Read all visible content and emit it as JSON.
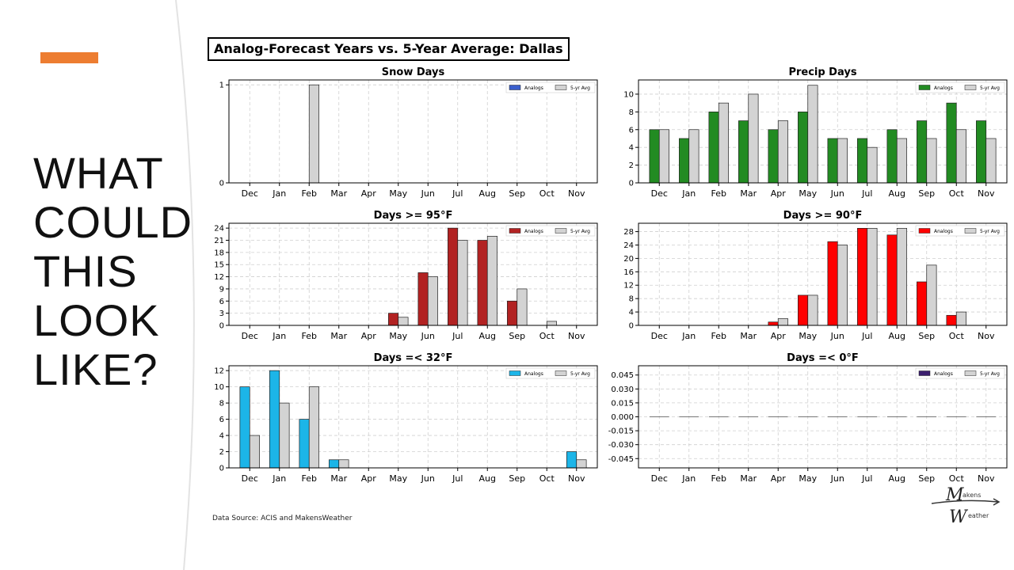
{
  "slide": {
    "title_lines": [
      "WHAT",
      "COULD",
      "THIS",
      "LOOK",
      "LIKE?"
    ],
    "accent_color": "#ED7D31",
    "main_title": "Analog-Forecast Years vs. 5-Year Average: Dallas",
    "source_note": "Data Source: ACIS and MakensWeather",
    "logo": {
      "icon": "makens-weather-logo",
      "top_text": "akens",
      "bottom_text": "eather",
      "initial_top": "M",
      "initial_bottom": "W"
    }
  },
  "chart_data": [
    {
      "type": "bar",
      "title": "Snow Days",
      "categories": [
        "Dec",
        "Jan",
        "Feb",
        "Mar",
        "Apr",
        "May",
        "Jun",
        "Jul",
        "Aug",
        "Sep",
        "Oct",
        "Nov"
      ],
      "series": [
        {
          "name": "Analogs",
          "color": "#3A5FCD",
          "values": [
            0,
            0,
            0,
            0,
            0,
            0,
            0,
            0,
            0,
            0,
            0,
            0
          ]
        },
        {
          "name": "5-yr Avg",
          "color": "#D3D3D3",
          "values": [
            0,
            0,
            1,
            0,
            0,
            0,
            0,
            0,
            0,
            0,
            0,
            0
          ]
        }
      ],
      "ylim": [
        0,
        1.05
      ],
      "yticks": [
        0,
        1
      ],
      "ytick_labels": [
        "0",
        "1"
      ],
      "grid": true,
      "legend": "top-right"
    },
    {
      "type": "bar",
      "title": "Precip Days",
      "categories": [
        "Dec",
        "Jan",
        "Feb",
        "Mar",
        "Apr",
        "May",
        "Jun",
        "Jul",
        "Aug",
        "Sep",
        "Oct",
        "Nov"
      ],
      "series": [
        {
          "name": "Analogs",
          "color": "#228B22",
          "values": [
            6,
            5,
            8,
            7,
            6,
            8,
            5,
            5,
            6,
            7,
            9,
            7
          ]
        },
        {
          "name": "5-yr Avg",
          "color": "#D3D3D3",
          "values": [
            6,
            6,
            9,
            10,
            7,
            11,
            5,
            4,
            5,
            5,
            6,
            5
          ]
        }
      ],
      "ylim": [
        0,
        11.6
      ],
      "yticks": [
        0,
        2,
        4,
        6,
        8,
        10
      ],
      "ytick_labels": [
        "0",
        "2",
        "4",
        "6",
        "8",
        "10"
      ],
      "grid": true,
      "legend": "top-right"
    },
    {
      "type": "bar",
      "title": "Days >= 95°F",
      "categories": [
        "Dec",
        "Jan",
        "Feb",
        "Mar",
        "Apr",
        "May",
        "Jun",
        "Jul",
        "Aug",
        "Sep",
        "Oct",
        "Nov"
      ],
      "series": [
        {
          "name": "Analogs",
          "color": "#B22222",
          "values": [
            0,
            0,
            0,
            0,
            0,
            3,
            13,
            24,
            21,
            6,
            0,
            0
          ]
        },
        {
          "name": "5-yr Avg",
          "color": "#D3D3D3",
          "values": [
            0,
            0,
            0,
            0,
            0,
            2,
            12,
            21,
            22,
            9,
            1,
            0
          ]
        }
      ],
      "ylim": [
        0,
        25.2
      ],
      "yticks": [
        0,
        3,
        6,
        9,
        12,
        15,
        18,
        21,
        24
      ],
      "ytick_labels": [
        "0",
        "3",
        "6",
        "9",
        "12",
        "15",
        "18",
        "21",
        "24"
      ],
      "grid": true,
      "legend": "top-right"
    },
    {
      "type": "bar",
      "title": "Days >= 90°F",
      "categories": [
        "Dec",
        "Jan",
        "Feb",
        "Mar",
        "Apr",
        "May",
        "Jun",
        "Jul",
        "Aug",
        "Sep",
        "Oct",
        "Nov"
      ],
      "series": [
        {
          "name": "Analogs",
          "color": "#FF0000",
          "values": [
            0,
            0,
            0,
            0,
            1,
            9,
            25,
            29,
            27,
            13,
            3,
            0
          ]
        },
        {
          "name": "5-yr Avg",
          "color": "#D3D3D3",
          "values": [
            0,
            0,
            0,
            0,
            2,
            9,
            24,
            29,
            29,
            18,
            4,
            0
          ]
        }
      ],
      "ylim": [
        0,
        30.5
      ],
      "yticks": [
        0,
        4,
        8,
        12,
        16,
        20,
        24,
        28
      ],
      "ytick_labels": [
        "0",
        "4",
        "8",
        "12",
        "16",
        "20",
        "24",
        "28"
      ],
      "grid": true,
      "legend": "top-right"
    },
    {
      "type": "bar",
      "title": "Days =< 32°F",
      "categories": [
        "Dec",
        "Jan",
        "Feb",
        "Mar",
        "Apr",
        "May",
        "Jun",
        "Jul",
        "Aug",
        "Sep",
        "Oct",
        "Nov"
      ],
      "series": [
        {
          "name": "Analogs",
          "color": "#1CB5E8",
          "values": [
            10,
            12,
            6,
            1,
            0,
            0,
            0,
            0,
            0,
            0,
            0,
            2
          ]
        },
        {
          "name": "5-yr Avg",
          "color": "#D3D3D3",
          "values": [
            4,
            8,
            10,
            1,
            0,
            0,
            0,
            0,
            0,
            0,
            0,
            1
          ]
        }
      ],
      "ylim": [
        0,
        12.6
      ],
      "yticks": [
        0,
        2,
        4,
        6,
        8,
        10,
        12
      ],
      "ytick_labels": [
        "0",
        "2",
        "4",
        "6",
        "8",
        "10",
        "12"
      ],
      "grid": true,
      "legend": "top-right"
    },
    {
      "type": "bar",
      "title": "Days =< 0°F",
      "categories": [
        "Dec",
        "Jan",
        "Feb",
        "Mar",
        "Apr",
        "May",
        "Jun",
        "Jul",
        "Aug",
        "Sep",
        "Oct",
        "Nov"
      ],
      "series": [
        {
          "name": "Analogs",
          "color": "#3B1E6E",
          "values": [
            0,
            0,
            0,
            0,
            0,
            0,
            0,
            0,
            0,
            0,
            0,
            0
          ]
        },
        {
          "name": "5-yr Avg",
          "color": "#D3D3D3",
          "values": [
            0,
            0,
            0,
            0,
            0,
            0,
            0,
            0,
            0,
            0,
            0,
            0
          ]
        }
      ],
      "ylim": [
        -0.055,
        0.055
      ],
      "yticks": [
        -0.045,
        -0.03,
        -0.015,
        0,
        0.015,
        0.03,
        0.045
      ],
      "ytick_labels": [
        "-0.045",
        "-0.030",
        "-0.015",
        "0.000",
        "0.015",
        "0.030",
        "0.045"
      ],
      "grid": true,
      "legend": "top-right"
    }
  ]
}
